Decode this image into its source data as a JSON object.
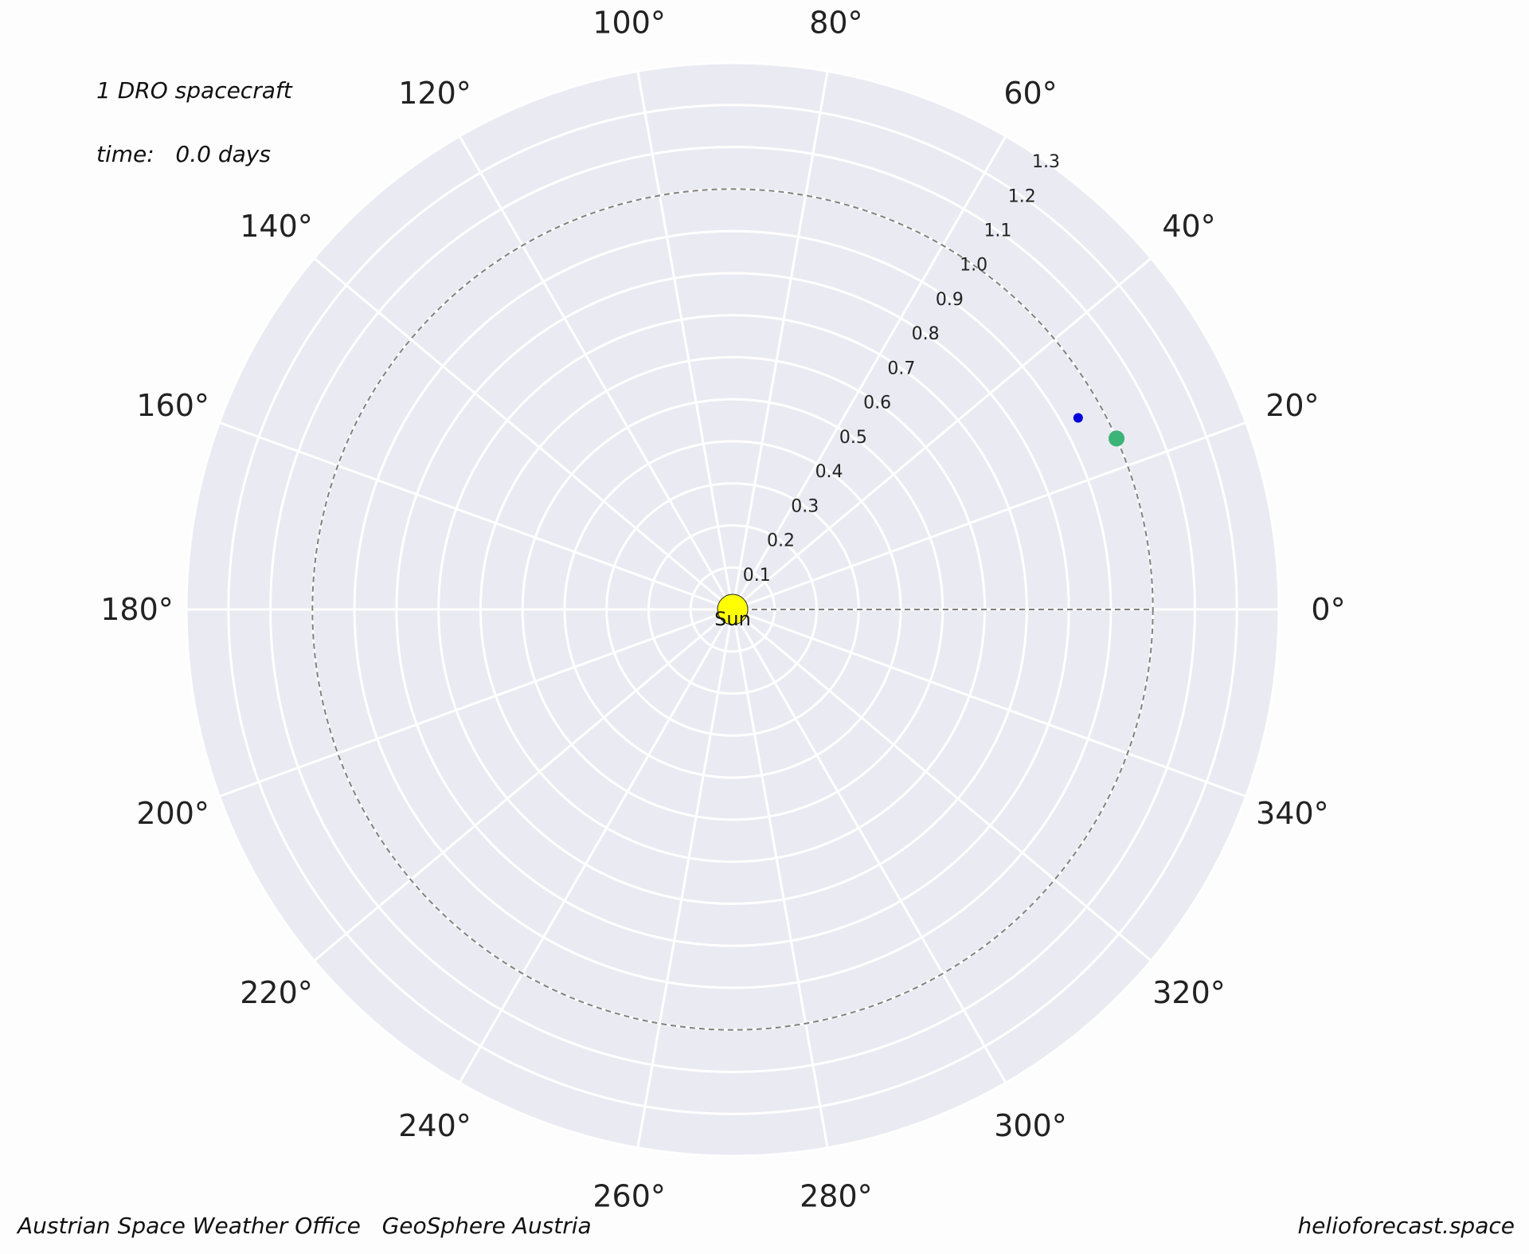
{
  "annotations": {
    "spacecraft_count": "1 DRO spacecraft",
    "time": "time:   0.0 days"
  },
  "footer": {
    "left": "Austrian Space Weather Office   GeoSphere Austria",
    "right": "helioforecast.space"
  },
  "colors": {
    "panel": "#eaeaf2",
    "grid": "#ffffff",
    "sun": "#ffff00",
    "dro": "#0000dd",
    "earth": "#3cb478",
    "reference_line": "#808080"
  },
  "chart_data": {
    "type": "scatter",
    "projection": "polar",
    "theta_unit": "degrees",
    "theta_zero": "east",
    "theta_direction": "counterclockwise",
    "r_unit": "AU",
    "rlim": [
      0,
      1.3
    ],
    "r_ticks": [
      0.1,
      0.2,
      0.3,
      0.4,
      0.5,
      0.6,
      0.7,
      0.8,
      0.9,
      1.0,
      1.1,
      1.2,
      1.3
    ],
    "r_tick_labels": [
      "0.1",
      "0.2",
      "0.3",
      "0.4",
      "0.5",
      "0.6",
      "0.7",
      "0.8",
      "0.9",
      "1.0",
      "1.1",
      "1.2",
      "1.3"
    ],
    "r_label_angle_deg": 55,
    "theta_ticks": [
      0,
      20,
      40,
      60,
      80,
      100,
      120,
      140,
      160,
      180,
      200,
      220,
      240,
      260,
      280,
      300,
      320,
      340
    ],
    "theta_tick_labels": [
      "0°",
      "20°",
      "40°",
      "60°",
      "80°",
      "100°",
      "120°",
      "140°",
      "160°",
      "180°",
      "200°",
      "220°",
      "240°",
      "260°",
      "280°",
      "300°",
      "320°",
      "340°"
    ],
    "angular_gridlines_every_deg": 20,
    "grid": true,
    "reference_circle_r": 1.0,
    "reference_ray": {
      "theta": 0,
      "r_from": 0,
      "r_to": 1.0
    },
    "points": [
      {
        "label": "Sun",
        "theta": 0,
        "r": 0,
        "color": "#ffff00",
        "marker_size": "large"
      },
      {
        "label": "",
        "theta": 29,
        "r": 0.94,
        "color": "#0000dd",
        "marker_size": "small"
      },
      {
        "label": "",
        "theta": 24,
        "r": 1.0,
        "color": "#3cb478",
        "marker_size": "medium"
      }
    ]
  }
}
